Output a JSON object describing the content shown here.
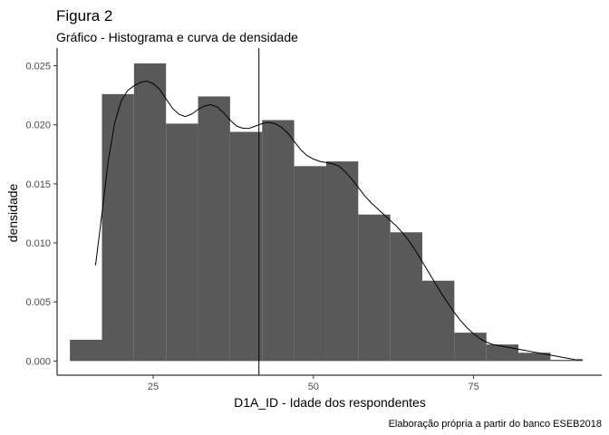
{
  "chart_data": {
    "type": "bar",
    "title": "Figura 2",
    "subtitle": "Gráfico - Histograma e curva de densidade",
    "caption": "Elaboração própria a partir do banco ESEB2018",
    "xlabel": "D1A_ID - Idade dos respondentes",
    "ylabel": "densidade",
    "xlim": [
      10,
      95
    ],
    "ylim": [
      -0.0012,
      0.0265
    ],
    "x_ticks": [
      25,
      50,
      75
    ],
    "y_ticks": [
      0.0,
      0.005,
      0.01,
      0.015,
      0.02,
      0.025
    ],
    "y_tick_labels": [
      "0.000",
      "0.005",
      "0.010",
      "0.015",
      "0.020",
      "0.025"
    ],
    "grid": false,
    "bar_color": "#595959",
    "bins": [
      {
        "x0": 12,
        "x1": 17,
        "density": 0.0018
      },
      {
        "x0": 17,
        "x1": 22,
        "density": 0.0226
      },
      {
        "x0": 22,
        "x1": 27,
        "density": 0.0252
      },
      {
        "x0": 27,
        "x1": 32,
        "density": 0.0201
      },
      {
        "x0": 32,
        "x1": 37,
        "density": 0.0224
      },
      {
        "x0": 37,
        "x1": 42,
        "density": 0.0194
      },
      {
        "x0": 42,
        "x1": 47,
        "density": 0.0204
      },
      {
        "x0": 47,
        "x1": 52,
        "density": 0.0165
      },
      {
        "x0": 52,
        "x1": 57,
        "density": 0.0169
      },
      {
        "x0": 57,
        "x1": 62,
        "density": 0.0124
      },
      {
        "x0": 62,
        "x1": 67,
        "density": 0.0109
      },
      {
        "x0": 67,
        "x1": 72,
        "density": 0.0068
      },
      {
        "x0": 72,
        "x1": 77,
        "density": 0.0024
      },
      {
        "x0": 77,
        "x1": 82,
        "density": 0.0014
      },
      {
        "x0": 82,
        "x1": 87,
        "density": 0.0007
      },
      {
        "x0": 87,
        "x1": 92,
        "density": 0.0001
      }
    ],
    "density_curve": [
      [
        16,
        0.0081
      ],
      [
        17,
        0.0125
      ],
      [
        18,
        0.017
      ],
      [
        19,
        0.0202
      ],
      [
        20,
        0.022
      ],
      [
        21,
        0.0229
      ],
      [
        22,
        0.0233
      ],
      [
        23,
        0.0236
      ],
      [
        24,
        0.0237
      ],
      [
        25,
        0.0235
      ],
      [
        26,
        0.023
      ],
      [
        27,
        0.0222
      ],
      [
        28,
        0.0214
      ],
      [
        29,
        0.0209
      ],
      [
        30,
        0.0207
      ],
      [
        31,
        0.0209
      ],
      [
        32,
        0.0213
      ],
      [
        33,
        0.0216
      ],
      [
        34,
        0.0217
      ],
      [
        35,
        0.0215
      ],
      [
        36,
        0.021
      ],
      [
        37,
        0.0204
      ],
      [
        38,
        0.0199
      ],
      [
        39,
        0.0197
      ],
      [
        40,
        0.0197
      ],
      [
        41,
        0.0199
      ],
      [
        42,
        0.0201
      ],
      [
        43,
        0.0202
      ],
      [
        44,
        0.0201
      ],
      [
        45,
        0.0198
      ],
      [
        46,
        0.0193
      ],
      [
        47,
        0.0186
      ],
      [
        48,
        0.0179
      ],
      [
        49,
        0.0174
      ],
      [
        50,
        0.0171
      ],
      [
        51,
        0.0169
      ],
      [
        52,
        0.0168
      ],
      [
        53,
        0.0167
      ],
      [
        54,
        0.0165
      ],
      [
        55,
        0.016
      ],
      [
        56,
        0.0154
      ],
      [
        57,
        0.0147
      ],
      [
        58,
        0.014
      ],
      [
        59,
        0.0134
      ],
      [
        60,
        0.0129
      ],
      [
        61,
        0.0124
      ],
      [
        62,
        0.0119
      ],
      [
        63,
        0.0114
      ],
      [
        64,
        0.0108
      ],
      [
        65,
        0.0101
      ],
      [
        66,
        0.0093
      ],
      [
        67,
        0.0084
      ],
      [
        68,
        0.0075
      ],
      [
        69,
        0.0066
      ],
      [
        70,
        0.0057
      ],
      [
        71,
        0.0049
      ],
      [
        72,
        0.0041
      ],
      [
        73,
        0.0034
      ],
      [
        74,
        0.0028
      ],
      [
        75,
        0.0023
      ],
      [
        76,
        0.0019
      ],
      [
        77,
        0.0016
      ],
      [
        78,
        0.0014
      ],
      [
        79,
        0.0013
      ],
      [
        80,
        0.0012
      ],
      [
        81,
        0.0011
      ],
      [
        82,
        0.001
      ],
      [
        83,
        0.0009
      ],
      [
        84,
        0.0008
      ],
      [
        85,
        0.0007
      ],
      [
        86,
        0.0006
      ],
      [
        87,
        0.0005
      ],
      [
        88,
        0.0004
      ],
      [
        89,
        0.0003
      ],
      [
        90,
        0.0002
      ],
      [
        91,
        0.0001
      ],
      [
        92,
        0.0001
      ]
    ],
    "vline_x": 41.5
  }
}
